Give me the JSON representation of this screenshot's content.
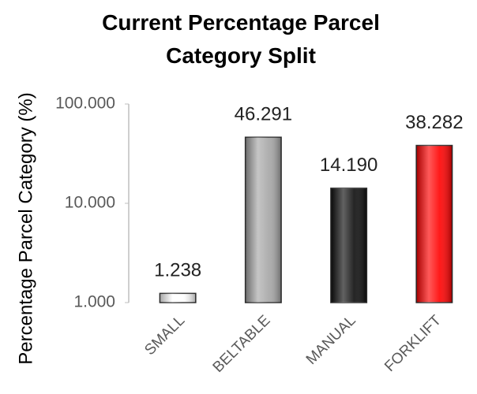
{
  "chart_data": {
    "type": "bar",
    "title": "Current Percentage Parcel Category Split",
    "y_label": "Percentage Parcel Category (%)",
    "categories": [
      "SMALL",
      "BELTABLE",
      "MANUAL",
      "FORKLIFT"
    ],
    "values": [
      1.238,
      46.291,
      14.19,
      38.282
    ],
    "value_labels": [
      "1.238",
      "46.291",
      "14.190",
      "38.282"
    ],
    "colors": [
      "#ffffff",
      "#a6a6a6",
      "#0d0d0d",
      "#ff0000"
    ],
    "ylim": [
      1,
      100
    ],
    "log_y": true,
    "yticks": [
      {
        "value": 1,
        "label": "1.000"
      },
      {
        "value": 10,
        "label": "10.000"
      },
      {
        "value": 100,
        "label": "100.000"
      }
    ],
    "grid": false
  }
}
